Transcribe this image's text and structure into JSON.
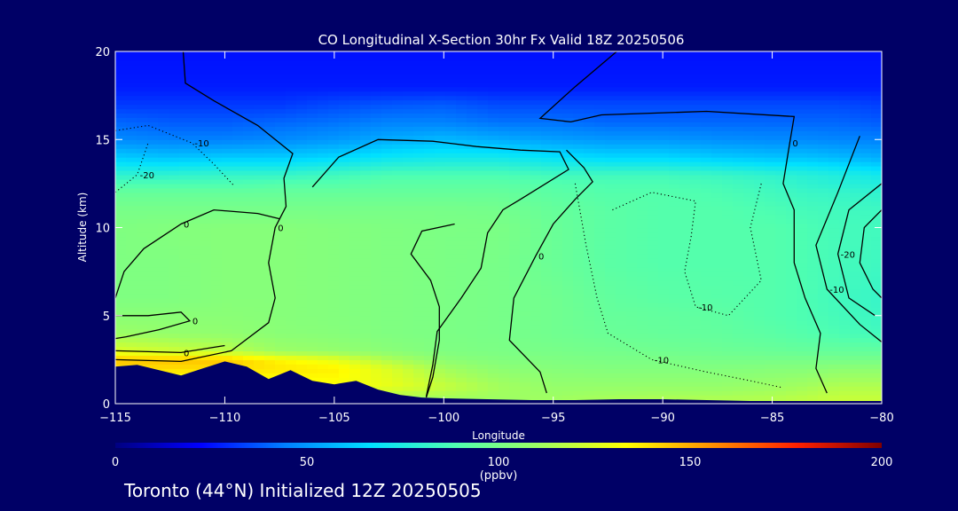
{
  "chart_data": {
    "type": "heatmap",
    "title": "CO Longitudinal X-Section 30hr  Fx Valid 18Z 20250506",
    "xlabel": "Longitude",
    "ylabel": "Altitude (km)",
    "xlim": [
      -115,
      -80
    ],
    "ylim": [
      0,
      20
    ],
    "x_ticks": [
      -115,
      -110,
      -105,
      -100,
      -95,
      -90,
      -85,
      -80
    ],
    "x_tick_labels": [
      "−115",
      "−110",
      "−105",
      "−100",
      "−95",
      "−90",
      "−85",
      "−80"
    ],
    "y_ticks": [
      0,
      5,
      10,
      15,
      20
    ],
    "y_tick_labels": [
      "0",
      "5",
      "10",
      "15",
      "20"
    ],
    "colorbar": {
      "label": "(ppbv)",
      "range": [
        0,
        200
      ],
      "ticks": [
        0,
        50,
        100,
        150,
        200
      ],
      "tick_labels": [
        "0",
        "50",
        "100",
        "150",
        "200"
      ],
      "colors": [
        "#000080",
        "#0000ff",
        "#0080ff",
        "#00e0ff",
        "#50ffb0",
        "#a0ff60",
        "#ffff00",
        "#ff9000",
        "#ff2000",
        "#800000"
      ]
    },
    "altitude_levels_km": [
      0,
      1,
      2,
      2.5,
      3,
      4,
      5,
      6,
      8,
      10,
      11,
      12,
      12.5,
      13,
      14,
      15,
      16,
      17,
      18,
      20
    ],
    "field_ppbv": [
      [
        95,
        125,
        140,
        145,
        125,
        110,
        105,
        102,
        102,
        102,
        100,
        95,
        88,
        80,
        62,
        47,
        40,
        32,
        27,
        25
      ],
      [
        95,
        125,
        140,
        145,
        122,
        108,
        105,
        102,
        102,
        103,
        100,
        95,
        88,
        80,
        60,
        45,
        38,
        32,
        27,
        25
      ],
      [
        97,
        127,
        140,
        145,
        118,
        107,
        105,
        104,
        104,
        104,
        100,
        95,
        88,
        82,
        62,
        45,
        38,
        32,
        27,
        25
      ],
      [
        100,
        130,
        138,
        135,
        110,
        105,
        104,
        104,
        104,
        104,
        100,
        95,
        90,
        82,
        62,
        47,
        40,
        32,
        27,
        25
      ],
      [
        103,
        132,
        136,
        128,
        108,
        104,
        103,
        103,
        103,
        103,
        100,
        95,
        90,
        85,
        65,
        50,
        42,
        35,
        27,
        25
      ],
      [
        105,
        128,
        125,
        115,
        105,
        102,
        102,
        102,
        102,
        102,
        100,
        95,
        92,
        88,
        70,
        55,
        45,
        37,
        27,
        25
      ],
      [
        108,
        120,
        112,
        106,
        102,
        101,
        101,
        101,
        101,
        101,
        100,
        95,
        92,
        88,
        72,
        58,
        45,
        38,
        27,
        25
      ],
      [
        110,
        112,
        106,
        103,
        101,
        100,
        100,
        100,
        100,
        101,
        99,
        95,
        92,
        88,
        72,
        55,
        42,
        35,
        27,
        25
      ],
      [
        112,
        108,
        104,
        102,
        100,
        98,
        98,
        98,
        96,
        96,
        95,
        92,
        90,
        85,
        68,
        52,
        42,
        35,
        27,
        25
      ],
      [
        115,
        108,
        103,
        101,
        99,
        96,
        95,
        94,
        92,
        92,
        92,
        90,
        88,
        85,
        65,
        50,
        40,
        35,
        27,
        25
      ],
      [
        117,
        108,
        103,
        101,
        98,
        95,
        94,
        92,
        90,
        90,
        90,
        90,
        88,
        85,
        65,
        50,
        40,
        35,
        27,
        25
      ],
      [
        117,
        108,
        103,
        100,
        97,
        94,
        93,
        91,
        90,
        90,
        90,
        88,
        86,
        83,
        62,
        48,
        40,
        35,
        27,
        25
      ],
      [
        118,
        110,
        104,
        100,
        96,
        92,
        90,
        90,
        90,
        90,
        88,
        85,
        83,
        80,
        60,
        47,
        40,
        35,
        27,
        25
      ],
      [
        120,
        112,
        104,
        100,
        95,
        90,
        88,
        88,
        88,
        88,
        86,
        83,
        80,
        78,
        60,
        47,
        40,
        35,
        27,
        25
      ],
      [
        122,
        115,
        106,
        100,
        95,
        88,
        86,
        85,
        86,
        86,
        85,
        82,
        78,
        76,
        58,
        46,
        40,
        35,
        27,
        25
      ],
      [
        122,
        115,
        106,
        100,
        94,
        85,
        83,
        82,
        84,
        85,
        84,
        80,
        76,
        72,
        55,
        45,
        38,
        33,
        27,
        25
      ]
    ],
    "field_longitudes": [
      -115,
      -112.5,
      -110,
      -107.5,
      -105,
      -102.5,
      -100,
      -97.5,
      -95,
      -92.5,
      -90,
      -87.5,
      -85,
      -83.5,
      -82,
      -80
    ],
    "terrain_km": [
      [
        -115,
        2.1
      ],
      [
        -114,
        2.2
      ],
      [
        -113,
        1.9
      ],
      [
        -112,
        1.6
      ],
      [
        -111,
        2.0
      ],
      [
        -110,
        2.4
      ],
      [
        -109,
        2.1
      ],
      [
        -108,
        1.4
      ],
      [
        -107,
        1.9
      ],
      [
        -106,
        1.3
      ],
      [
        -105,
        1.1
      ],
      [
        -104,
        1.3
      ],
      [
        -103,
        0.8
      ],
      [
        -102,
        0.5
      ],
      [
        -101,
        0.35
      ],
      [
        -100,
        0.3
      ],
      [
        -98,
        0.25
      ],
      [
        -96,
        0.2
      ],
      [
        -94,
        0.2
      ],
      [
        -92,
        0.25
      ],
      [
        -90,
        0.25
      ],
      [
        -88,
        0.2
      ],
      [
        -86,
        0.15
      ],
      [
        -84,
        0.15
      ],
      [
        -82,
        0.15
      ],
      [
        -80,
        0.15
      ]
    ],
    "contours": [
      {
        "level": "0",
        "style": "solid",
        "label": "0",
        "points": [
          [
            -111.9,
            20
          ],
          [
            -111.8,
            18.2
          ],
          [
            -110.5,
            17.2
          ],
          [
            -108.5,
            15.8
          ],
          [
            -106.9,
            14.2
          ],
          [
            -107.3,
            12.8
          ],
          [
            -107.2,
            11.2
          ],
          [
            -107.7,
            10
          ],
          [
            -108.0,
            8.0
          ],
          [
            -107.7,
            6.0
          ],
          [
            -108.0,
            4.6
          ],
          [
            -109.7,
            3.0
          ],
          [
            -112,
            2.4
          ],
          [
            -115,
            2.5
          ]
        ]
      },
      {
        "level": "0",
        "style": "solid",
        "label": "0",
        "points": [
          [
            -115,
            3.0
          ],
          [
            -112,
            2.9
          ],
          [
            -110,
            3.3
          ]
        ]
      },
      {
        "level": "0",
        "style": "solid",
        "label": "0",
        "points": [
          [
            -115,
            5.0
          ],
          [
            -113.5,
            5.0
          ],
          [
            -112,
            5.2
          ],
          [
            -111.6,
            4.7
          ],
          [
            -113.0,
            4.2
          ],
          [
            -114.5,
            3.8
          ],
          [
            -115,
            3.7
          ]
        ]
      },
      {
        "level": "0",
        "style": "solid",
        "label": "0",
        "points": [
          [
            -115,
            6.0
          ],
          [
            -114.6,
            7.5
          ],
          [
            -113.7,
            8.8
          ],
          [
            -112.0,
            10.2
          ],
          [
            -110.5,
            11.0
          ],
          [
            -108.5,
            10.8
          ],
          [
            -107.5,
            10.5
          ]
        ]
      },
      {
        "level": "0",
        "style": "solid",
        "label": "",
        "points": [
          [
            -106.0,
            12.3
          ],
          [
            -104.8,
            14.0
          ],
          [
            -103.0,
            15.0
          ],
          [
            -100.5,
            14.9
          ],
          [
            -98.5,
            14.6
          ],
          [
            -96.5,
            14.4
          ],
          [
            -94.7,
            14.3
          ],
          [
            -94.3,
            13.3
          ],
          [
            -96.5,
            11.6
          ],
          [
            -97.3,
            11.0
          ],
          [
            -98.0,
            9.7
          ],
          [
            -98.3,
            7.7
          ],
          [
            -99.2,
            6.0
          ],
          [
            -100.3,
            4.1
          ],
          [
            -100.5,
            2.2
          ],
          [
            -100.8,
            0.4
          ]
        ]
      },
      {
        "level": "0",
        "style": "solid",
        "label": "",
        "points": [
          [
            -99.5,
            10.2
          ],
          [
            -101.0,
            9.8
          ],
          [
            -101.5,
            8.5
          ],
          [
            -100.6,
            7.0
          ],
          [
            -100.2,
            5.5
          ],
          [
            -100.2,
            3.6
          ],
          [
            -100.5,
            1.5
          ],
          [
            -100.8,
            0.35
          ]
        ]
      },
      {
        "level": "0",
        "style": "solid",
        "label": "0",
        "points": [
          [
            -94.4,
            14.4
          ],
          [
            -93.6,
            13.4
          ],
          [
            -93.2,
            12.6
          ],
          [
            -94.0,
            11.6
          ],
          [
            -95.0,
            10.2
          ],
          [
            -95.8,
            8.4
          ],
          [
            -96.8,
            6.0
          ],
          [
            -97.0,
            3.6
          ],
          [
            -95.6,
            1.8
          ],
          [
            -95.3,
            0.6
          ]
        ]
      },
      {
        "level": "0",
        "style": "solid",
        "label": "0",
        "points": [
          [
            -92.1,
            20
          ],
          [
            -94.0,
            18.0
          ],
          [
            -95.6,
            16.2
          ],
          [
            -94.2,
            16.0
          ],
          [
            -92.8,
            16.4
          ],
          [
            -88.0,
            16.6
          ],
          [
            -84.0,
            16.3
          ],
          [
            -84.2,
            14.8
          ],
          [
            -84.5,
            12.5
          ],
          [
            -84.0,
            11.0
          ],
          [
            -84.0,
            8.0
          ],
          [
            -83.5,
            6.0
          ],
          [
            -82.8,
            4.0
          ],
          [
            -83.0,
            2.0
          ],
          [
            -82.5,
            0.6
          ]
        ]
      },
      {
        "level": "-10",
        "style": "dotted",
        "label": "-10",
        "points": [
          [
            -94.0,
            12.5
          ],
          [
            -93.5,
            9.0
          ],
          [
            -93.0,
            6.0
          ],
          [
            -92.5,
            4.0
          ],
          [
            -90.5,
            2.5
          ],
          [
            -88.0,
            1.8
          ],
          [
            -86.0,
            1.3
          ],
          [
            -84.5,
            0.9
          ]
        ]
      },
      {
        "level": "-10",
        "style": "dotted",
        "label": "-10",
        "points": [
          [
            -92.3,
            11.0
          ],
          [
            -90.5,
            12.0
          ],
          [
            -88.5,
            11.5
          ],
          [
            -88.7,
            9.5
          ],
          [
            -89.0,
            7.5
          ],
          [
            -88.5,
            5.5
          ],
          [
            -87.0,
            5.0
          ],
          [
            -85.5,
            7.0
          ],
          [
            -86.0,
            10.0
          ],
          [
            -85.5,
            12.5
          ]
        ]
      },
      {
        "level": "-10",
        "style": "dotted",
        "label": "-10",
        "points": [
          [
            -115,
            15.5
          ],
          [
            -113.5,
            15.8
          ],
          [
            -111.5,
            14.8
          ],
          [
            -110.5,
            13.6
          ],
          [
            -109.6,
            12.4
          ]
        ]
      },
      {
        "level": "-20",
        "style": "dotted",
        "label": "-20",
        "points": [
          [
            -115,
            12.0
          ],
          [
            -114.0,
            13.0
          ],
          [
            -113.5,
            14.8
          ]
        ]
      },
      {
        "level": "-10",
        "style": "solid",
        "label": "-10",
        "points": [
          [
            -81.0,
            15.2
          ],
          [
            -82.0,
            12.0
          ],
          [
            -83.0,
            9.0
          ],
          [
            -82.5,
            6.5
          ],
          [
            -81.0,
            4.5
          ],
          [
            -80.0,
            3.5
          ]
        ]
      },
      {
        "level": "-20",
        "style": "solid",
        "label": "-20",
        "points": [
          [
            -80.0,
            12.5
          ],
          [
            -81.5,
            11.0
          ],
          [
            -82.0,
            8.5
          ],
          [
            -81.5,
            6.0
          ],
          [
            -80.3,
            5.0
          ]
        ]
      },
      {
        "level": "-20",
        "style": "solid",
        "label": "",
        "points": [
          [
            -80.0,
            11.0
          ],
          [
            -80.8,
            10.0
          ],
          [
            -81.0,
            8.0
          ],
          [
            -80.4,
            6.5
          ],
          [
            -80.0,
            6.0
          ]
        ]
      }
    ]
  },
  "footer": {
    "text": "Toronto (44°N) Initialized 12Z 20250505"
  }
}
